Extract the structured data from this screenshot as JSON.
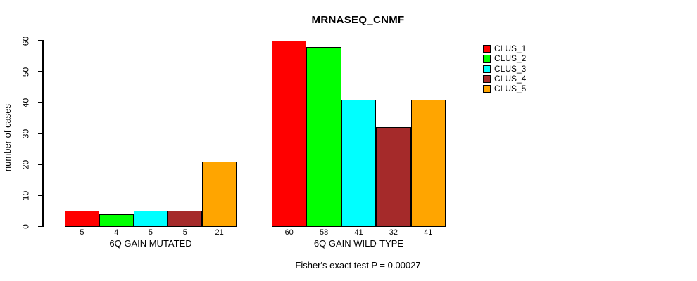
{
  "title": "MRNASEQ_CNMF",
  "footer": "Fisher's exact test P = 0.00027",
  "chart_data": {
    "type": "bar",
    "title": "MRNASEQ_CNMF",
    "ylabel": "number of cases",
    "xlabel": "",
    "ylim": [
      0,
      60
    ],
    "yticks": [
      0,
      10,
      20,
      30,
      40,
      50,
      60
    ],
    "grid": false,
    "legend_position": "top-right",
    "series": [
      "CLUS_1",
      "CLUS_2",
      "CLUS_3",
      "CLUS_4",
      "CLUS_5"
    ],
    "series_colors": [
      "#FF0000",
      "#00FF00",
      "#00FFFF",
      "#A52A2A",
      "#FFA500"
    ],
    "groups": [
      {
        "label": "6Q GAIN MUTATED",
        "values": [
          5,
          4,
          5,
          5,
          21
        ]
      },
      {
        "label": "6Q GAIN WILD-TYPE",
        "values": [
          60,
          58,
          41,
          32,
          41
        ]
      }
    ],
    "bar_value_labels_shown": true,
    "annotation": "Fisher's exact test P = 0.00027"
  }
}
